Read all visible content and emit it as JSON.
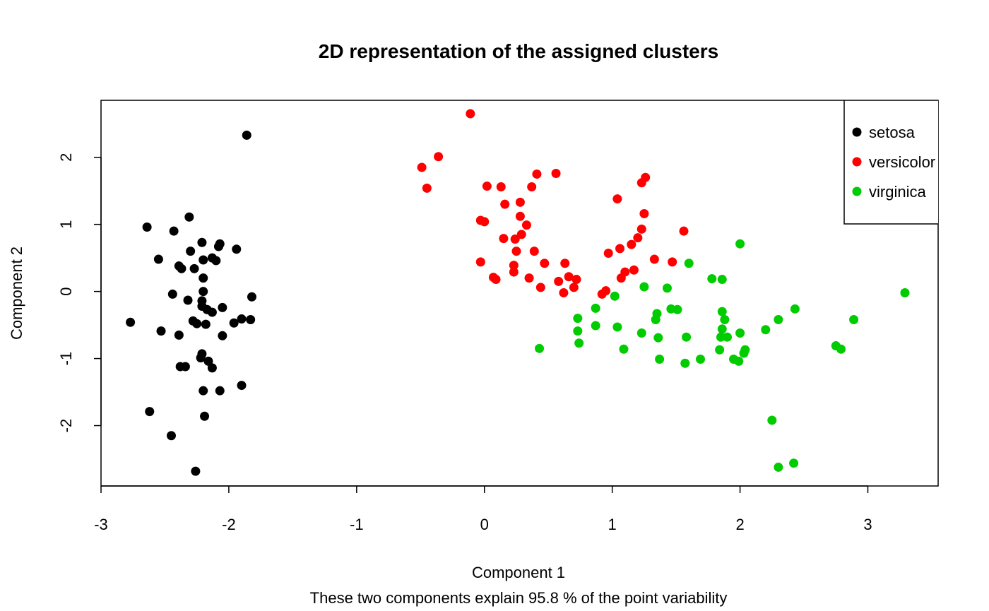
{
  "chart_data": {
    "type": "scatter",
    "title": "2D representation of the assigned clusters",
    "xlabel": "Component 1",
    "subtitle": "These two components explain 95.8 % of the point variability",
    "ylabel": "Component 2",
    "xlim": [
      -3.0,
      3.55
    ],
    "ylim": [
      -2.9,
      2.85
    ],
    "xticks": [
      -3,
      -2,
      -1,
      0,
      1,
      2,
      3
    ],
    "yticks": [
      -2,
      -1,
      0,
      1,
      2
    ],
    "legend_position": "top-right",
    "series": [
      {
        "name": "setosa",
        "color": "#000000",
        "points": [
          [
            -1.86,
            2.33
          ],
          [
            -2.31,
            1.11
          ],
          [
            -2.64,
            0.96
          ],
          [
            -2.43,
            0.9
          ],
          [
            -2.21,
            0.73
          ],
          [
            -2.07,
            0.71
          ],
          [
            -2.08,
            0.67
          ],
          [
            -2.3,
            0.6
          ],
          [
            -1.94,
            0.63
          ],
          [
            -2.55,
            0.48
          ],
          [
            -2.2,
            0.47
          ],
          [
            -2.13,
            0.5
          ],
          [
            -2.1,
            0.46
          ],
          [
            -2.39,
            0.38
          ],
          [
            -2.37,
            0.34
          ],
          [
            -2.27,
            0.34
          ],
          [
            -2.2,
            0.2
          ],
          [
            -2.44,
            -0.04
          ],
          [
            -2.2,
            0.0
          ],
          [
            -1.82,
            -0.08
          ],
          [
            -2.32,
            -0.13
          ],
          [
            -2.21,
            -0.14
          ],
          [
            -2.21,
            -0.22
          ],
          [
            -2.17,
            -0.27
          ],
          [
            -2.13,
            -0.31
          ],
          [
            -2.05,
            -0.24
          ],
          [
            -1.9,
            -0.41
          ],
          [
            -1.83,
            -0.42
          ],
          [
            -1.96,
            -0.47
          ],
          [
            -2.77,
            -0.46
          ],
          [
            -2.28,
            -0.44
          ],
          [
            -2.25,
            -0.48
          ],
          [
            -2.18,
            -0.49
          ],
          [
            -2.53,
            -0.59
          ],
          [
            -2.39,
            -0.65
          ],
          [
            -2.05,
            -0.66
          ],
          [
            -2.21,
            -0.93
          ],
          [
            -2.22,
            -0.99
          ],
          [
            -2.16,
            -1.04
          ],
          [
            -2.38,
            -1.12
          ],
          [
            -2.34,
            -1.12
          ],
          [
            -2.13,
            -1.14
          ],
          [
            -2.2,
            -1.48
          ],
          [
            -2.07,
            -1.48
          ],
          [
            -1.9,
            -1.4
          ],
          [
            -2.62,
            -1.79
          ],
          [
            -2.19,
            -1.86
          ],
          [
            -2.45,
            -2.15
          ],
          [
            -2.26,
            -2.68
          ]
        ]
      },
      {
        "name": "versicolor",
        "color": "#ff0000",
        "points": [
          [
            -0.11,
            2.65
          ],
          [
            -0.36,
            2.01
          ],
          [
            -0.49,
            1.85
          ],
          [
            -0.45,
            1.54
          ],
          [
            0.41,
            1.75
          ],
          [
            0.56,
            1.76
          ],
          [
            1.26,
            1.7
          ],
          [
            1.23,
            1.62
          ],
          [
            0.02,
            1.57
          ],
          [
            0.13,
            1.56
          ],
          [
            0.37,
            1.56
          ],
          [
            1.04,
            1.38
          ],
          [
            0.16,
            1.3
          ],
          [
            0.28,
            1.33
          ],
          [
            0.28,
            1.12
          ],
          [
            1.25,
            1.16
          ],
          [
            0.33,
            0.99
          ],
          [
            -0.03,
            1.06
          ],
          [
            0.0,
            1.04
          ],
          [
            1.23,
            0.93
          ],
          [
            1.56,
            0.9
          ],
          [
            0.29,
            0.85
          ],
          [
            0.15,
            0.79
          ],
          [
            0.24,
            0.78
          ],
          [
            1.2,
            0.8
          ],
          [
            1.15,
            0.7
          ],
          [
            1.06,
            0.64
          ],
          [
            0.97,
            0.57
          ],
          [
            0.25,
            0.6
          ],
          [
            0.39,
            0.6
          ],
          [
            -0.03,
            0.44
          ],
          [
            0.47,
            0.42
          ],
          [
            0.63,
            0.42
          ],
          [
            0.23,
            0.39
          ],
          [
            1.33,
            0.48
          ],
          [
            1.47,
            0.44
          ],
          [
            1.1,
            0.29
          ],
          [
            1.17,
            0.32
          ],
          [
            1.07,
            0.2
          ],
          [
            0.23,
            0.29
          ],
          [
            0.07,
            0.21
          ],
          [
            0.09,
            0.18
          ],
          [
            0.35,
            0.2
          ],
          [
            0.66,
            0.22
          ],
          [
            0.72,
            0.18
          ],
          [
            0.58,
            0.15
          ],
          [
            0.44,
            0.06
          ],
          [
            0.7,
            0.06
          ],
          [
            0.62,
            -0.02
          ],
          [
            0.92,
            -0.04
          ],
          [
            0.95,
            0.01
          ]
        ]
      },
      {
        "name": "virginica",
        "color": "#00cc00",
        "points": [
          [
            2.0,
            0.71
          ],
          [
            1.6,
            0.42
          ],
          [
            1.78,
            0.19
          ],
          [
            1.86,
            0.18
          ],
          [
            1.25,
            0.07
          ],
          [
            1.43,
            0.05
          ],
          [
            3.29,
            -0.02
          ],
          [
            1.02,
            -0.07
          ],
          [
            0.87,
            -0.25
          ],
          [
            1.46,
            -0.26
          ],
          [
            1.51,
            -0.27
          ],
          [
            2.43,
            -0.26
          ],
          [
            1.35,
            -0.33
          ],
          [
            1.86,
            -0.3
          ],
          [
            0.73,
            -0.4
          ],
          [
            1.34,
            -0.42
          ],
          [
            1.88,
            -0.42
          ],
          [
            2.3,
            -0.42
          ],
          [
            2.89,
            -0.42
          ],
          [
            0.87,
            -0.51
          ],
          [
            1.04,
            -0.53
          ],
          [
            1.86,
            -0.56
          ],
          [
            2.2,
            -0.57
          ],
          [
            0.73,
            -0.59
          ],
          [
            1.23,
            -0.62
          ],
          [
            2.0,
            -0.62
          ],
          [
            1.36,
            -0.69
          ],
          [
            1.58,
            -0.68
          ],
          [
            1.85,
            -0.68
          ],
          [
            1.9,
            -0.68
          ],
          [
            0.74,
            -0.77
          ],
          [
            2.75,
            -0.81
          ],
          [
            2.79,
            -0.86
          ],
          [
            0.43,
            -0.85
          ],
          [
            1.09,
            -0.86
          ],
          [
            1.84,
            -0.87
          ],
          [
            2.04,
            -0.87
          ],
          [
            2.03,
            -0.92
          ],
          [
            1.37,
            -1.01
          ],
          [
            1.69,
            -1.01
          ],
          [
            1.95,
            -1.01
          ],
          [
            1.99,
            -1.04
          ],
          [
            1.57,
            -1.07
          ],
          [
            2.25,
            -1.92
          ],
          [
            2.3,
            -2.62
          ],
          [
            2.42,
            -2.56
          ]
        ]
      }
    ]
  }
}
